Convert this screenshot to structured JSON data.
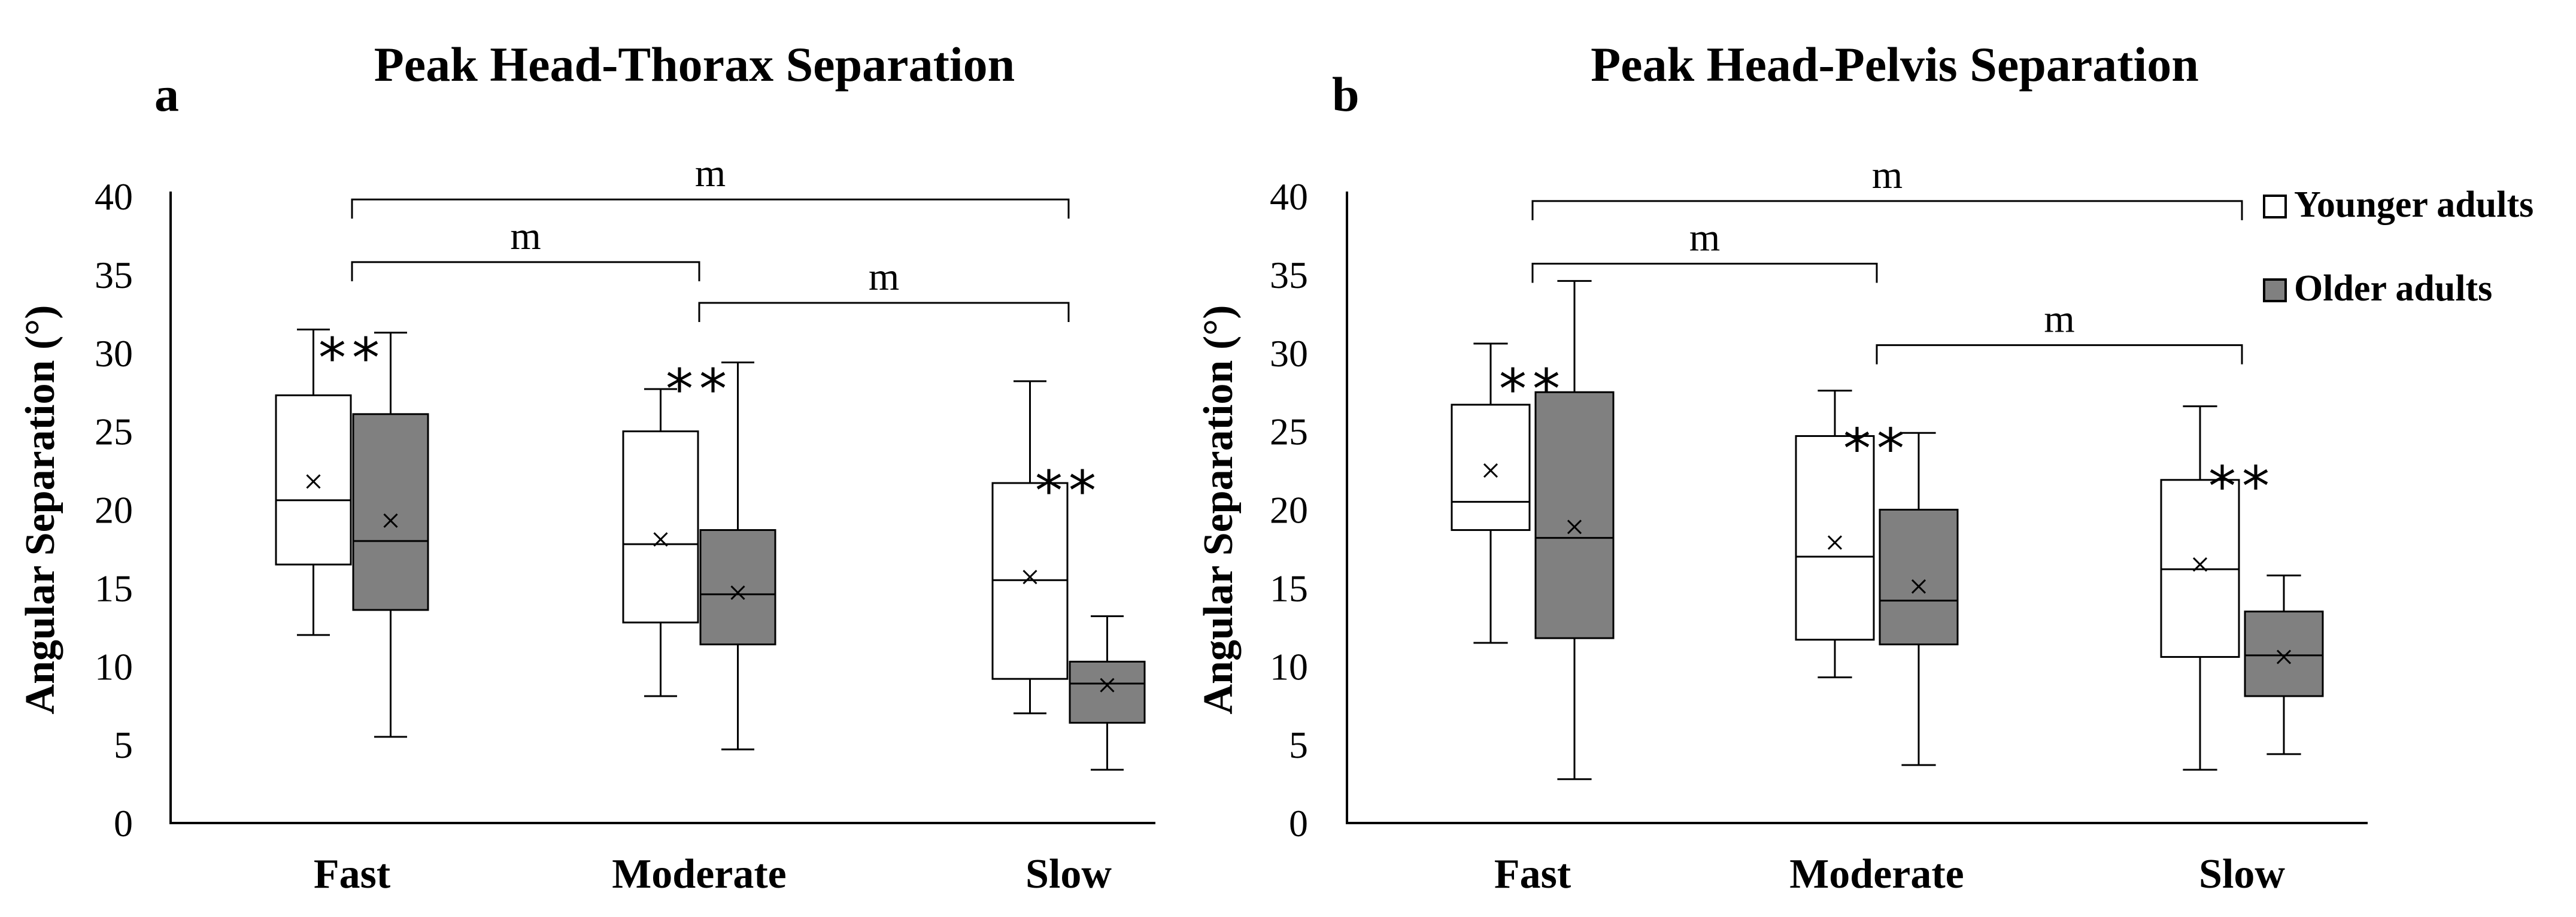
{
  "colors": {
    "younger": "#ffffff",
    "older": "#808080",
    "line": "#000000"
  },
  "legend": {
    "items": [
      {
        "label": "Younger adults",
        "color": "#ffffff"
      },
      {
        "label": "Older adults",
        "color": "#808080"
      }
    ]
  },
  "chart_data": [
    {
      "type": "box",
      "letter": "a",
      "title": "Peak Head-Thorax Separation",
      "ylabel": "Angular Separation (°)",
      "xlabel": "",
      "ylim": [
        0,
        40
      ],
      "yticks": [
        0,
        5,
        10,
        15,
        20,
        25,
        30,
        35,
        40
      ],
      "categories": [
        "Fast",
        "Moderate",
        "Slow"
      ],
      "series": [
        {
          "name": "Younger adults",
          "boxes": [
            {
              "min": 12.0,
              "q1": 16.5,
              "median": 20.6,
              "q3": 27.3,
              "max": 31.5,
              "mean": 21.8
            },
            {
              "min": 8.1,
              "q1": 12.8,
              "median": 17.8,
              "q3": 25.0,
              "max": 27.7,
              "mean": 18.1
            },
            {
              "min": 7.0,
              "q1": 9.2,
              "median": 15.5,
              "q3": 21.7,
              "max": 28.2,
              "mean": 15.7
            }
          ]
        },
        {
          "name": "Older adults",
          "boxes": [
            {
              "min": 5.5,
              "q1": 13.6,
              "median": 18.0,
              "q3": 26.1,
              "max": 31.3,
              "mean": 19.3
            },
            {
              "min": 4.7,
              "q1": 11.4,
              "median": 14.6,
              "q3": 18.7,
              "max": 29.4,
              "mean": 14.7
            },
            {
              "min": 3.4,
              "q1": 6.4,
              "median": 8.9,
              "q3": 10.3,
              "max": 13.2,
              "mean": 8.8
            }
          ]
        }
      ],
      "significance": [
        {
          "category": "Fast",
          "label": "**",
          "y": 30.0
        },
        {
          "category": "Moderate",
          "label": "**",
          "y": 28.0
        },
        {
          "category": "Slow",
          "label": "**",
          "y": 21.5
        }
      ],
      "brackets": [
        {
          "from": "Fast",
          "to": "Slow",
          "y": 39.8,
          "label": "m"
        },
        {
          "from": "Fast",
          "to": "Moderate",
          "y": 35.8,
          "label": "m"
        },
        {
          "from": "Moderate",
          "to": "Slow",
          "y": 33.2,
          "label": "m"
        }
      ]
    },
    {
      "type": "box",
      "letter": "b",
      "title": "Peak Head-Pelvis Separation",
      "ylabel": "Angular Separation (°)",
      "xlabel": "",
      "ylim": [
        0,
        40
      ],
      "yticks": [
        0,
        5,
        10,
        15,
        20,
        25,
        30,
        35,
        40
      ],
      "categories": [
        "Fast",
        "Moderate",
        "Slow"
      ],
      "series": [
        {
          "name": "Younger adults",
          "boxes": [
            {
              "min": 11.5,
              "q1": 18.7,
              "median": 20.5,
              "q3": 26.7,
              "max": 30.6,
              "mean": 22.5
            },
            {
              "min": 9.3,
              "q1": 11.7,
              "median": 17.0,
              "q3": 24.7,
              "max": 27.6,
              "mean": 17.9
            },
            {
              "min": 3.4,
              "q1": 10.6,
              "median": 16.2,
              "q3": 21.9,
              "max": 26.6,
              "mean": 16.5
            }
          ]
        },
        {
          "name": "Older adults",
          "boxes": [
            {
              "min": 2.8,
              "q1": 11.8,
              "median": 18.2,
              "q3": 27.5,
              "max": 34.6,
              "mean": 18.9
            },
            {
              "min": 3.7,
              "q1": 11.4,
              "median": 14.2,
              "q3": 20.0,
              "max": 24.9,
              "mean": 15.1
            },
            {
              "min": 4.4,
              "q1": 8.1,
              "median": 10.7,
              "q3": 13.5,
              "max": 15.8,
              "mean": 10.6
            }
          ]
        }
      ],
      "significance": [
        {
          "category": "Fast",
          "label": "**",
          "y": 28.0
        },
        {
          "category": "Moderate",
          "label": "**",
          "y": 24.2
        },
        {
          "category": "Slow",
          "label": "**",
          "y": 21.8
        }
      ],
      "brackets": [
        {
          "from": "Fast",
          "to": "Slow",
          "y": 39.7,
          "label": "m"
        },
        {
          "from": "Fast",
          "to": "Moderate",
          "y": 35.7,
          "label": "m"
        },
        {
          "from": "Moderate",
          "to": "Slow",
          "y": 30.5,
          "label": "m"
        }
      ]
    }
  ]
}
